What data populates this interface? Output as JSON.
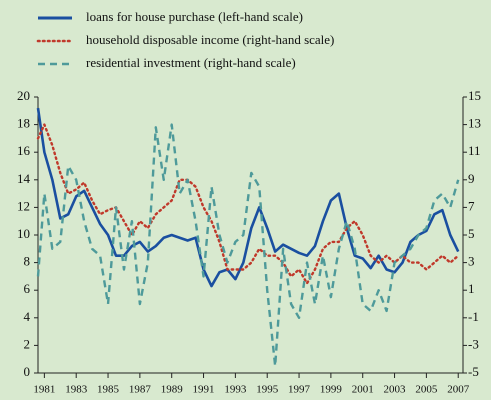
{
  "chart_data": {
    "type": "line",
    "x": [
      1980.6,
      1981,
      1981.5,
      1982,
      1982.5,
      1983,
      1983.5,
      1984,
      1984.5,
      1985,
      1985.5,
      1986,
      1986.5,
      1987,
      1987.5,
      1988,
      1988.5,
      1989,
      1989.5,
      1990,
      1990.5,
      1991,
      1991.5,
      1992,
      1992.5,
      1993,
      1993.5,
      1994,
      1994.5,
      1995,
      1995.5,
      1996,
      1996.5,
      1997,
      1997.5,
      1998,
      1998.5,
      1999,
      1999.5,
      2000,
      2000.5,
      2001,
      2001.5,
      2002,
      2002.5,
      2003,
      2003.5,
      2004,
      2004.5,
      2005,
      2005.5,
      2006,
      2006.5,
      2007
    ],
    "series": [
      {
        "name": "loans for house purchase (left-hand scale)",
        "color": "#1a4fa0",
        "style": "solid",
        "values": [
          19.2,
          16,
          14,
          11.2,
          11.5,
          12.8,
          13.2,
          12,
          10.8,
          10,
          8.5,
          8.5,
          9.2,
          9.5,
          8.8,
          9.2,
          9.8,
          10,
          9.8,
          9.6,
          9.8,
          7.5,
          6.3,
          7.3,
          7.5,
          6.8,
          8,
          10.5,
          12,
          10.5,
          8.8,
          9.3,
          9,
          8.7,
          8.5,
          9.2,
          11,
          12.5,
          13,
          10.5,
          8.5,
          8.3,
          7.6,
          8.5,
          7.5,
          7.3,
          8,
          9.5,
          10,
          10.3,
          11.5,
          11.8,
          10,
          8.8
        ]
      },
      {
        "name": "household disposable income (right-hand scale)",
        "color": "#c0392b",
        "style": "dotted",
        "axis": "y2",
        "values": [
          12,
          13,
          11.5,
          9.5,
          8,
          8.3,
          8.8,
          7.5,
          6.5,
          6.8,
          7,
          6,
          5,
          6,
          5.5,
          6.5,
          7,
          7.5,
          9,
          9,
          8.5,
          7,
          6,
          4.5,
          2.5,
          2.5,
          2.5,
          3,
          4,
          3.5,
          3.5,
          3,
          2,
          2.5,
          1.5,
          2.5,
          4,
          4.5,
          4.5,
          5.5,
          6,
          5,
          3.5,
          3,
          3.5,
          3,
          3.5,
          3,
          3,
          2.5,
          3,
          3.5,
          3,
          3.5
        ]
      },
      {
        "name": "residential investment (right-hand scale)",
        "color": "#4e9a9a",
        "style": "dashed",
        "axis": "y2",
        "values": [
          2,
          8,
          4,
          4.5,
          10,
          9,
          6,
          4,
          3.5,
          0,
          7,
          2.5,
          6,
          0,
          3,
          12.8,
          9,
          13,
          8,
          9,
          6,
          2,
          8.5,
          5,
          3,
          4.5,
          5,
          9.5,
          8.5,
          1,
          -4.5,
          4,
          0,
          -1,
          3,
          0,
          3.5,
          0.5,
          4,
          6,
          4,
          0,
          -0.5,
          1,
          -0.5,
          3,
          3.5,
          4,
          5,
          5.5,
          7.5,
          8,
          7,
          9
        ]
      }
    ],
    "xlim": [
      1980.6,
      2007.3
    ],
    "xticks": [
      1981,
      1983,
      1985,
      1987,
      1989,
      1991,
      1993,
      1995,
      1997,
      1999,
      2001,
      2003,
      2005,
      2007
    ],
    "ylim": [
      0,
      20
    ],
    "yticks": [
      0,
      2,
      4,
      6,
      8,
      10,
      12,
      14,
      16,
      18,
      20
    ],
    "y2lim": [
      -5,
      15
    ],
    "y2ticks": [
      -5,
      -3,
      -1,
      1,
      3,
      5,
      7,
      9,
      11,
      13,
      15
    ]
  }
}
